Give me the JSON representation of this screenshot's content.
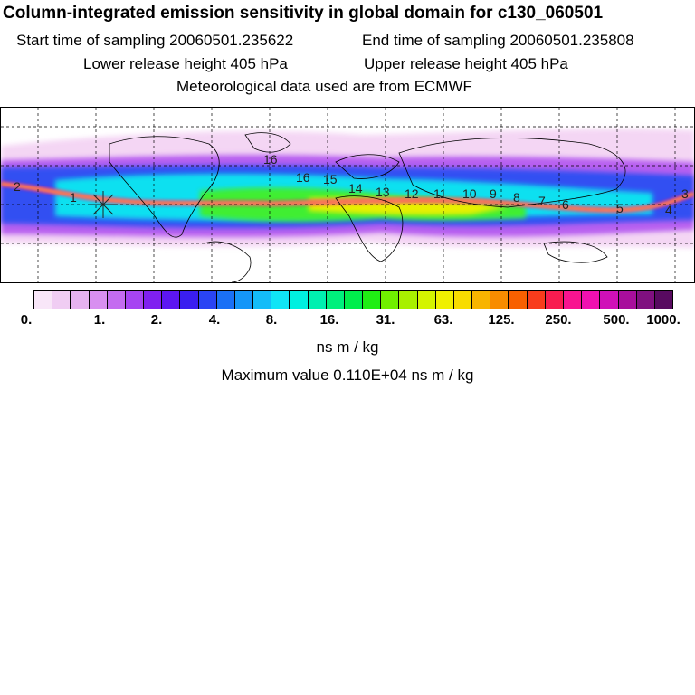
{
  "header": {
    "title": "Column-integrated emission sensitivity in global domain for c130_060501",
    "start_time": "Start time of sampling 20060501.235622",
    "end_time": "End time of sampling 20060501.235808",
    "lower_release": "Lower release height  405 hPa",
    "upper_release": "Upper release height  405 hPa",
    "met_data": "Meteorological data used are from ECMWF"
  },
  "map": {
    "projection": "global lat-lon",
    "track_labels": [
      "2",
      "1",
      "16",
      "16",
      "15",
      "14",
      "13",
      "12",
      "11",
      "10",
      "9",
      "8",
      "7",
      "6",
      "5",
      "4",
      "3"
    ]
  },
  "colorbar": {
    "colors": [
      "#f8e6f8",
      "#f0cdf3",
      "#e6b2f0",
      "#d88ff0",
      "#c46cf0",
      "#a644f2",
      "#8020f0",
      "#5c16f2",
      "#3a1ef0",
      "#2a44f4",
      "#1a70f6",
      "#1596f8",
      "#14bcf8",
      "#10e4f6",
      "#00f0e0",
      "#00f0b0",
      "#00f07c",
      "#00ee4c",
      "#20ee14",
      "#70f000",
      "#a8f000",
      "#d4f400",
      "#f0f000",
      "#f8dc00",
      "#f8b400",
      "#f88c00",
      "#f86000",
      "#f83c1c",
      "#f81c50",
      "#f81490",
      "#f010b0",
      "#d010b8",
      "#a80e9c",
      "#801080",
      "#580a60"
    ],
    "tick_labels": [
      "0.",
      "1.",
      "2.",
      "4.",
      "8.",
      "16.",
      "31.",
      "63.",
      "125.",
      "250.",
      "500.",
      "1000."
    ],
    "units": "ns m / kg"
  },
  "footer": {
    "max_value": "Maximum value  0.110E+04 ns m / kg"
  }
}
